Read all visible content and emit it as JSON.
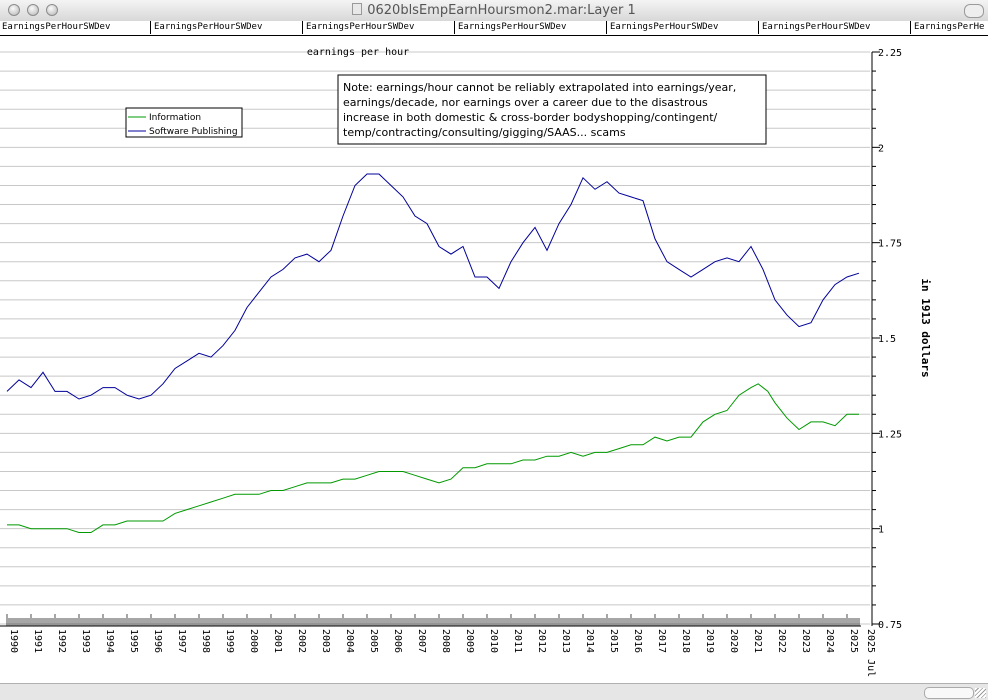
{
  "window": {
    "title": "0620blsEmpEarnHoursmon2.mar:Layer 1"
  },
  "tabs": [
    "EarningsPerHourSWDev",
    "EarningsPerHourSWDev",
    "EarningsPerHourSWDev",
    "EarningsPerHourSWDev",
    "EarningsPerHourSWDev",
    "EarningsPerHourSWDev",
    "EarningsPerHe"
  ],
  "colors": {
    "information": "#009900",
    "software_publishing": "#000099",
    "grid": "#c8c8c8",
    "note_border": "#000000"
  },
  "chart_data": {
    "type": "line",
    "title": "earnings per hour",
    "ylabel": "in 1913 dollars",
    "ylim": [
      0.75,
      2.25
    ],
    "yticks": [
      "2.25",
      "2",
      "1.75",
      "1.5",
      "1.25",
      "1",
      "0.75"
    ],
    "y_axis_side": "right",
    "x_range": [
      1990.0,
      2025.5
    ],
    "x_tick_labels": [
      "1990",
      "1991",
      "1992",
      "1993",
      "1994",
      "1995",
      "1996",
      "1997",
      "1998",
      "1999",
      "2000",
      "2001",
      "2002",
      "2003",
      "2004",
      "2005",
      "2006",
      "2007",
      "2008",
      "2009",
      "2010",
      "2011",
      "2012",
      "2013",
      "2014",
      "2015",
      "2016",
      "2017",
      "2018",
      "2019",
      "2020",
      "2021",
      "2022",
      "2023",
      "2024",
      "2025",
      "2025 Jul"
    ],
    "legend": {
      "placement": "top-left",
      "entries": [
        "Information",
        "Software Publishing"
      ]
    },
    "grid": true,
    "note": [
      "Note: earnings/hour cannot be reliably extrapolated into earnings/year,",
      "earnings/decade, nor earnings over a career due to the disastrous",
      "increase in both domestic & cross-border bodyshopping/contingent/",
      "temp/contracting/consulting/gigging/SAAS... scams"
    ],
    "series": [
      {
        "name": "Information",
        "x": [
          1990.0,
          1990.5,
          1991.0,
          1991.5,
          1992.0,
          1992.5,
          1993.0,
          1993.5,
          1994.0,
          1994.5,
          1995.0,
          1995.5,
          1996.0,
          1996.5,
          1997.0,
          1997.5,
          1998.0,
          1998.5,
          1999.0,
          1999.5,
          2000.0,
          2000.5,
          2001.0,
          2001.5,
          2002.0,
          2002.5,
          2003.0,
          2003.5,
          2004.0,
          2004.5,
          2005.0,
          2005.5,
          2006.0,
          2006.5,
          2007.0,
          2007.5,
          2008.0,
          2008.5,
          2009.0,
          2009.5,
          2010.0,
          2010.5,
          2011.0,
          2011.5,
          2012.0,
          2012.5,
          2013.0,
          2013.5,
          2014.0,
          2014.5,
          2015.0,
          2015.5,
          2016.0,
          2016.5,
          2017.0,
          2017.5,
          2018.0,
          2018.5,
          2019.0,
          2019.5,
          2020.0,
          2020.5,
          2021.0,
          2021.3,
          2021.7,
          2022.0,
          2022.5,
          2023.0,
          2023.5,
          2024.0,
          2024.5,
          2025.0,
          2025.5
        ],
        "values": [
          1.01,
          1.01,
          1.0,
          1.0,
          1.0,
          1.0,
          0.99,
          0.99,
          1.01,
          1.01,
          1.02,
          1.02,
          1.02,
          1.02,
          1.04,
          1.05,
          1.06,
          1.07,
          1.08,
          1.09,
          1.09,
          1.09,
          1.1,
          1.1,
          1.11,
          1.12,
          1.12,
          1.12,
          1.13,
          1.13,
          1.14,
          1.15,
          1.15,
          1.15,
          1.14,
          1.13,
          1.12,
          1.13,
          1.16,
          1.16,
          1.17,
          1.17,
          1.17,
          1.18,
          1.18,
          1.19,
          1.19,
          1.2,
          1.19,
          1.2,
          1.2,
          1.21,
          1.22,
          1.22,
          1.24,
          1.23,
          1.24,
          1.24,
          1.28,
          1.3,
          1.31,
          1.35,
          1.37,
          1.38,
          1.36,
          1.33,
          1.29,
          1.26,
          1.28,
          1.28,
          1.27,
          1.3,
          1.3
        ]
      },
      {
        "name": "Software Publishing",
        "x": [
          1990.0,
          1990.5,
          1991.0,
          1991.5,
          1992.0,
          1992.5,
          1993.0,
          1993.5,
          1994.0,
          1994.5,
          1995.0,
          1995.5,
          1996.0,
          1996.5,
          1997.0,
          1997.5,
          1998.0,
          1998.5,
          1999.0,
          1999.5,
          2000.0,
          2000.5,
          2001.0,
          2001.5,
          2002.0,
          2002.5,
          2003.0,
          2003.5,
          2004.0,
          2004.5,
          2005.0,
          2005.5,
          2006.0,
          2006.5,
          2007.0,
          2007.5,
          2008.0,
          2008.5,
          2009.0,
          2009.5,
          2010.0,
          2010.5,
          2011.0,
          2011.5,
          2012.0,
          2012.5,
          2013.0,
          2013.5,
          2014.0,
          2014.5,
          2015.0,
          2015.5,
          2016.0,
          2016.5,
          2017.0,
          2017.5,
          2018.0,
          2018.5,
          2019.0,
          2019.5,
          2020.0,
          2020.5,
          2021.0,
          2021.5,
          2022.0,
          2022.5,
          2023.0,
          2023.5,
          2024.0,
          2024.5,
          2025.0,
          2025.5
        ],
        "values": [
          1.36,
          1.39,
          1.37,
          1.41,
          1.36,
          1.36,
          1.34,
          1.35,
          1.37,
          1.37,
          1.35,
          1.34,
          1.35,
          1.38,
          1.42,
          1.44,
          1.46,
          1.45,
          1.48,
          1.52,
          1.58,
          1.62,
          1.66,
          1.68,
          1.71,
          1.72,
          1.7,
          1.73,
          1.82,
          1.9,
          1.93,
          1.93,
          1.9,
          1.87,
          1.82,
          1.8,
          1.74,
          1.72,
          1.74,
          1.66,
          1.66,
          1.63,
          1.7,
          1.75,
          1.79,
          1.73,
          1.8,
          1.85,
          1.92,
          1.89,
          1.91,
          1.88,
          1.87,
          1.86,
          1.76,
          1.7,
          1.68,
          1.66,
          1.68,
          1.7,
          1.71,
          1.7,
          1.74,
          1.68,
          1.6,
          1.56,
          1.53,
          1.54,
          1.6,
          1.64,
          1.66,
          1.67
        ]
      }
    ]
  }
}
